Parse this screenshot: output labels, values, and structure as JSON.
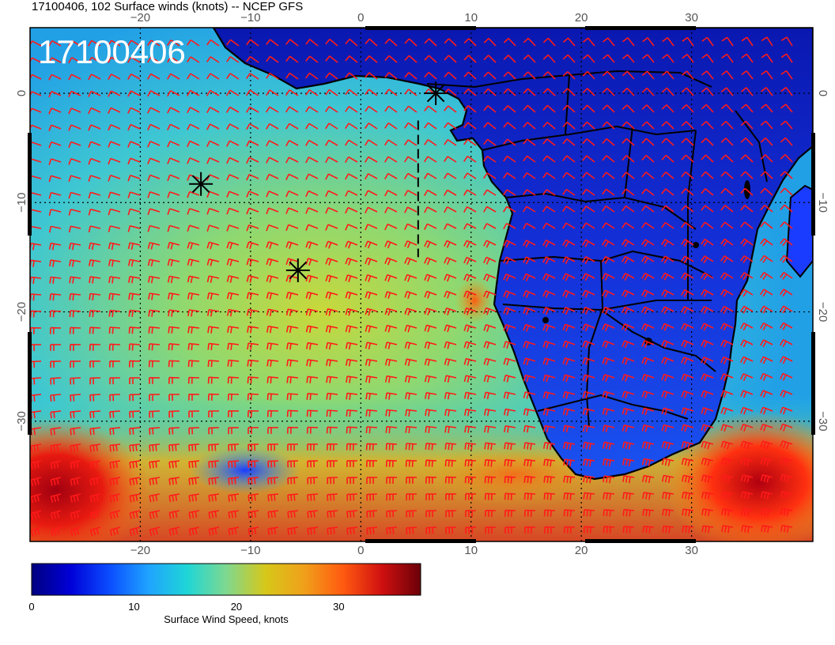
{
  "header": {
    "title": "17100406, 102 Surface winds (knots) -- NCEP GFS",
    "stamp": "17100406"
  },
  "map": {
    "lon_range": [
      -30,
      41
    ],
    "lat_range": [
      -41,
      6
    ],
    "lon_ticks": [
      -20,
      -10,
      0,
      10,
      20,
      30
    ],
    "lon_tick_labels": [
      "−20",
      "−10",
      "0",
      "10",
      "20",
      "30"
    ],
    "lat_ticks": [
      0,
      -10,
      -20,
      -30
    ],
    "lat_tick_labels": [
      "0",
      "−10",
      "−20",
      "−30"
    ],
    "markers": [
      {
        "name": "asterisk-marker-1",
        "lon": 6.8,
        "lat": 0.0
      },
      {
        "name": "asterisk-marker-2",
        "lon": -14.5,
        "lat": -8.3
      },
      {
        "name": "asterisk-marker-3",
        "lon": -5.7,
        "lat": -16.2
      }
    ],
    "track_line": [
      [
        5.2,
        -2.5
      ],
      [
        5.2,
        -15.0
      ]
    ],
    "colors": {
      "barb": "#ff1a1a",
      "coast": "#000000",
      "grid": "#000000"
    }
  },
  "colorbar": {
    "label": "Surface Wind Speed, knots",
    "min": 0,
    "max": 38,
    "ticks": [
      0,
      10,
      20,
      30
    ],
    "tick_labels": [
      "0",
      "10",
      "20",
      "30"
    ],
    "colors": [
      "#00007f",
      "#0000d8",
      "#0b4dff",
      "#1fa3ff",
      "#1fd6d6",
      "#5be0b0",
      "#a8d860",
      "#d6c81a",
      "#f0a01a",
      "#ff6a10",
      "#e81a10",
      "#a00010",
      "#6a0008"
    ]
  }
}
